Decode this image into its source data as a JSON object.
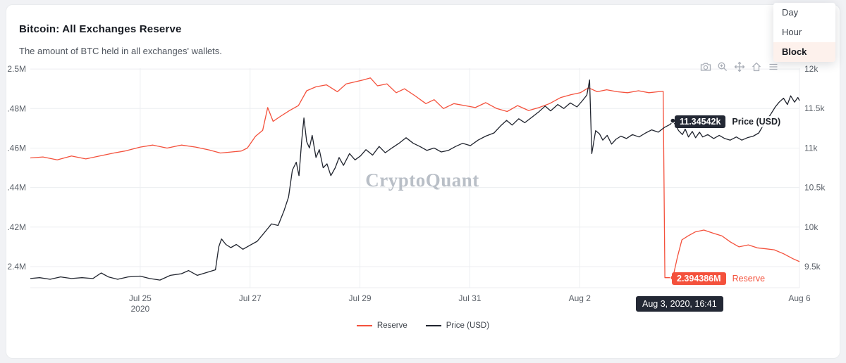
{
  "header": {
    "title": "Bitcoin: All Exchanges Reserve",
    "subtitle": "The amount of BTC held in all exchanges' wallets."
  },
  "dropdown": {
    "items": [
      {
        "label": "Day",
        "selected": false
      },
      {
        "label": "Hour",
        "selected": false
      },
      {
        "label": "Block",
        "selected": true
      }
    ]
  },
  "toolbar": {
    "icons": [
      "camera-icon",
      "zoom-in-icon",
      "pan-icon",
      "home-icon",
      "menu-icon"
    ]
  },
  "watermark": "CryptoQuant",
  "tooltips": {
    "price": {
      "value": "11.34542k",
      "label": "Price (USD)"
    },
    "reserve": {
      "value": "2.394386M",
      "label": "Reserve"
    },
    "date": "Aug 3, 2020, 16:41"
  },
  "legend": [
    {
      "label": "Reserve",
      "color": "#f4513c"
    },
    {
      "label": "Price (USD)",
      "color": "#20242e"
    }
  ],
  "colors": {
    "reserve_red": "#f4513c",
    "price_dark": "#20242e",
    "grid": "#eceef1",
    "tooltip_dark_bg": "#232834",
    "dropdown_highlight": "#fdf1ec"
  },
  "chart_data": {
    "type": "line",
    "title": "Bitcoin: All Exchanges Reserve",
    "x_unit": "days since Jul 23 2020 00:00",
    "x_range": [
      0,
      14
    ],
    "grid": true,
    "legend_position": "bottom-center",
    "x_ticks": [
      {
        "value": 2,
        "label": "Jul 25",
        "sub": "2020"
      },
      {
        "value": 4,
        "label": "Jul 27"
      },
      {
        "value": 6,
        "label": "Jul 29"
      },
      {
        "value": 8,
        "label": "Jul 31"
      },
      {
        "value": 10,
        "label": "Aug 2"
      },
      {
        "value": 14,
        "label": "Aug 6"
      }
    ],
    "left_axis": {
      "range": [
        2.3893,
        2.5004
      ],
      "unit": "M BTC",
      "ticks": [
        {
          "value": 2.5,
          "label": "2.5M"
        },
        {
          "value": 2.48,
          "label": ".48M"
        },
        {
          "value": 2.46,
          "label": ".46M"
        },
        {
          "value": 2.44,
          "label": ".44M"
        },
        {
          "value": 2.42,
          "label": ".42M"
        },
        {
          "value": 2.4,
          "label": "2.4M"
        }
      ]
    },
    "right_axis": {
      "range": [
        9.233,
        12.009
      ],
      "unit": "k USD",
      "ticks": [
        {
          "value": 12,
          "label": "12k"
        },
        {
          "value": 11.5,
          "label": "11.5k"
        },
        {
          "value": 11,
          "label": "11k"
        },
        {
          "value": 10.5,
          "label": "10.5k"
        },
        {
          "value": 10,
          "label": "10k"
        },
        {
          "value": 9.5,
          "label": "9.5k"
        }
      ]
    },
    "series": [
      {
        "name": "Reserve",
        "id": "reserve",
        "axis": "left",
        "color": "#f4513c",
        "points": [
          [
            0,
            2.455
          ],
          [
            0.23,
            2.4555
          ],
          [
            0.49,
            2.454
          ],
          [
            0.75,
            2.456
          ],
          [
            1.01,
            2.4545
          ],
          [
            1.26,
            2.456
          ],
          [
            1.52,
            2.4575
          ],
          [
            1.72,
            2.4585
          ],
          [
            2.0,
            2.4605
          ],
          [
            2.23,
            2.4615
          ],
          [
            2.49,
            2.46
          ],
          [
            2.75,
            2.4615
          ],
          [
            3.01,
            2.4605
          ],
          [
            3.26,
            2.459
          ],
          [
            3.46,
            2.4575
          ],
          [
            3.65,
            2.458
          ],
          [
            3.84,
            2.4585
          ],
          [
            3.95,
            2.46
          ],
          [
            4.1,
            2.466
          ],
          [
            4.23,
            2.469
          ],
          [
            4.32,
            2.4805
          ],
          [
            4.42,
            2.4735
          ],
          [
            4.55,
            2.476
          ],
          [
            4.72,
            2.479
          ],
          [
            4.88,
            2.4815
          ],
          [
            5.03,
            2.489
          ],
          [
            5.2,
            2.491
          ],
          [
            5.39,
            2.492
          ],
          [
            5.59,
            2.4885
          ],
          [
            5.75,
            2.4925
          ],
          [
            5.91,
            2.4935
          ],
          [
            6.06,
            2.4945
          ],
          [
            6.19,
            2.4955
          ],
          [
            6.32,
            2.4915
          ],
          [
            6.49,
            2.4925
          ],
          [
            6.66,
            2.488
          ],
          [
            6.81,
            2.49
          ],
          [
            7.0,
            2.4865
          ],
          [
            7.2,
            2.4825
          ],
          [
            7.35,
            2.4845
          ],
          [
            7.52,
            2.48
          ],
          [
            7.71,
            2.4825
          ],
          [
            7.91,
            2.4815
          ],
          [
            8.1,
            2.4805
          ],
          [
            8.29,
            2.483
          ],
          [
            8.49,
            2.48
          ],
          [
            8.68,
            2.4785
          ],
          [
            8.87,
            2.4815
          ],
          [
            9.07,
            2.479
          ],
          [
            9.26,
            2.4805
          ],
          [
            9.45,
            2.4825
          ],
          [
            9.65,
            2.4855
          ],
          [
            9.84,
            2.487
          ],
          [
            10.01,
            2.488
          ],
          [
            10.16,
            2.4905
          ],
          [
            10.32,
            2.4885
          ],
          [
            10.49,
            2.4895
          ],
          [
            10.68,
            2.4885
          ],
          [
            10.87,
            2.488
          ],
          [
            11.07,
            2.489
          ],
          [
            11.26,
            2.488
          ],
          [
            11.43,
            2.4885
          ],
          [
            11.52,
            2.4887
          ],
          [
            11.55,
            2.394386
          ],
          [
            11.695,
            2.394386
          ],
          [
            11.78,
            2.405
          ],
          [
            11.86,
            2.4135
          ],
          [
            11.97,
            2.4155
          ],
          [
            12.1,
            2.4175
          ],
          [
            12.26,
            2.4185
          ],
          [
            12.42,
            2.417
          ],
          [
            12.59,
            2.4155
          ],
          [
            12.74,
            2.4125
          ],
          [
            12.9,
            2.41
          ],
          [
            13.07,
            2.411
          ],
          [
            13.23,
            2.4095
          ],
          [
            13.39,
            2.409
          ],
          [
            13.54,
            2.4085
          ],
          [
            13.71,
            2.4065
          ],
          [
            13.88,
            2.404
          ],
          [
            14.0,
            2.4025
          ]
        ]
      },
      {
        "name": "Price (USD)",
        "id": "price",
        "axis": "right",
        "color": "#20242e",
        "points": [
          [
            0,
            9.35
          ],
          [
            0.17,
            9.36
          ],
          [
            0.36,
            9.34
          ],
          [
            0.55,
            9.37
          ],
          [
            0.75,
            9.35
          ],
          [
            0.94,
            9.36
          ],
          [
            1.14,
            9.35
          ],
          [
            1.29,
            9.42
          ],
          [
            1.42,
            9.37
          ],
          [
            1.59,
            9.34
          ],
          [
            1.78,
            9.37
          ],
          [
            2.0,
            9.38
          ],
          [
            2.17,
            9.35
          ],
          [
            2.36,
            9.33
          ],
          [
            2.55,
            9.39
          ],
          [
            2.75,
            9.41
          ],
          [
            2.88,
            9.45
          ],
          [
            3.04,
            9.39
          ],
          [
            3.23,
            9.43
          ],
          [
            3.37,
            9.46
          ],
          [
            3.43,
            9.75
          ],
          [
            3.48,
            9.85
          ],
          [
            3.56,
            9.78
          ],
          [
            3.65,
            9.74
          ],
          [
            3.75,
            9.78
          ],
          [
            3.87,
            9.72
          ],
          [
            4.0,
            9.77
          ],
          [
            4.13,
            9.82
          ],
          [
            4.26,
            9.93
          ],
          [
            4.39,
            10.04
          ],
          [
            4.51,
            10.02
          ],
          [
            4.62,
            10.21
          ],
          [
            4.7,
            10.38
          ],
          [
            4.77,
            10.72
          ],
          [
            4.84,
            10.82
          ],
          [
            4.89,
            10.65
          ],
          [
            4.94,
            11.1
          ],
          [
            4.98,
            11.38
          ],
          [
            5.03,
            11.08
          ],
          [
            5.08,
            11.0
          ],
          [
            5.13,
            11.16
          ],
          [
            5.2,
            10.88
          ],
          [
            5.26,
            10.98
          ],
          [
            5.33,
            10.75
          ],
          [
            5.4,
            10.8
          ],
          [
            5.47,
            10.65
          ],
          [
            5.55,
            10.75
          ],
          [
            5.62,
            10.88
          ],
          [
            5.7,
            10.78
          ],
          [
            5.81,
            10.93
          ],
          [
            5.91,
            10.85
          ],
          [
            6.01,
            10.9
          ],
          [
            6.11,
            10.98
          ],
          [
            6.23,
            10.91
          ],
          [
            6.35,
            11.02
          ],
          [
            6.46,
            10.94
          ],
          [
            6.58,
            11.0
          ],
          [
            6.71,
            11.06
          ],
          [
            6.84,
            11.13
          ],
          [
            6.97,
            11.06
          ],
          [
            7.09,
            11.02
          ],
          [
            7.22,
            10.97
          ],
          [
            7.35,
            11.0
          ],
          [
            7.48,
            10.95
          ],
          [
            7.61,
            10.97
          ],
          [
            7.74,
            11.02
          ],
          [
            7.87,
            11.06
          ],
          [
            8.01,
            11.03
          ],
          [
            8.15,
            11.1
          ],
          [
            8.29,
            11.15
          ],
          [
            8.44,
            11.19
          ],
          [
            8.56,
            11.28
          ],
          [
            8.67,
            11.35
          ],
          [
            8.77,
            11.29
          ],
          [
            8.89,
            11.37
          ],
          [
            9.0,
            11.32
          ],
          [
            9.13,
            11.39
          ],
          [
            9.26,
            11.46
          ],
          [
            9.37,
            11.53
          ],
          [
            9.47,
            11.47
          ],
          [
            9.6,
            11.55
          ],
          [
            9.71,
            11.5
          ],
          [
            9.83,
            11.57
          ],
          [
            9.95,
            11.52
          ],
          [
            10.05,
            11.6
          ],
          [
            10.13,
            11.67
          ],
          [
            10.18,
            11.86
          ],
          [
            10.22,
            10.93
          ],
          [
            10.29,
            11.22
          ],
          [
            10.36,
            11.18
          ],
          [
            10.42,
            11.1
          ],
          [
            10.5,
            11.16
          ],
          [
            10.58,
            11.05
          ],
          [
            10.66,
            11.11
          ],
          [
            10.75,
            11.15
          ],
          [
            10.85,
            11.12
          ],
          [
            10.96,
            11.17
          ],
          [
            11.08,
            11.14
          ],
          [
            11.2,
            11.19
          ],
          [
            11.31,
            11.23
          ],
          [
            11.43,
            11.2
          ],
          [
            11.54,
            11.26
          ],
          [
            11.65,
            11.3
          ],
          [
            11.695,
            11.34542
          ],
          [
            11.8,
            11.22
          ],
          [
            11.87,
            11.17
          ],
          [
            11.92,
            11.24
          ],
          [
            11.98,
            11.14
          ],
          [
            12.05,
            11.21
          ],
          [
            12.11,
            11.13
          ],
          [
            12.18,
            11.2
          ],
          [
            12.24,
            11.14
          ],
          [
            12.33,
            11.17
          ],
          [
            12.44,
            11.12
          ],
          [
            12.54,
            11.16
          ],
          [
            12.64,
            11.12
          ],
          [
            12.74,
            11.1
          ],
          [
            12.85,
            11.14
          ],
          [
            12.95,
            11.1
          ],
          [
            13.05,
            11.13
          ],
          [
            13.16,
            11.15
          ],
          [
            13.26,
            11.19
          ],
          [
            13.36,
            11.31
          ],
          [
            13.47,
            11.42
          ],
          [
            13.56,
            11.52
          ],
          [
            13.63,
            11.58
          ],
          [
            13.71,
            11.63
          ],
          [
            13.78,
            11.55
          ],
          [
            13.84,
            11.66
          ],
          [
            13.91,
            11.58
          ],
          [
            13.97,
            11.64
          ],
          [
            14.0,
            11.6
          ]
        ]
      }
    ],
    "markers": [
      {
        "series": "Reserve",
        "series_id": "reserve",
        "axis": "left",
        "x": 11.695,
        "y": 2.394386,
        "color": "#f4513c"
      },
      {
        "series": "Price (USD)",
        "series_id": "price",
        "axis": "right",
        "x": 11.695,
        "y": 11.34542,
        "color": "#20242e"
      }
    ]
  }
}
